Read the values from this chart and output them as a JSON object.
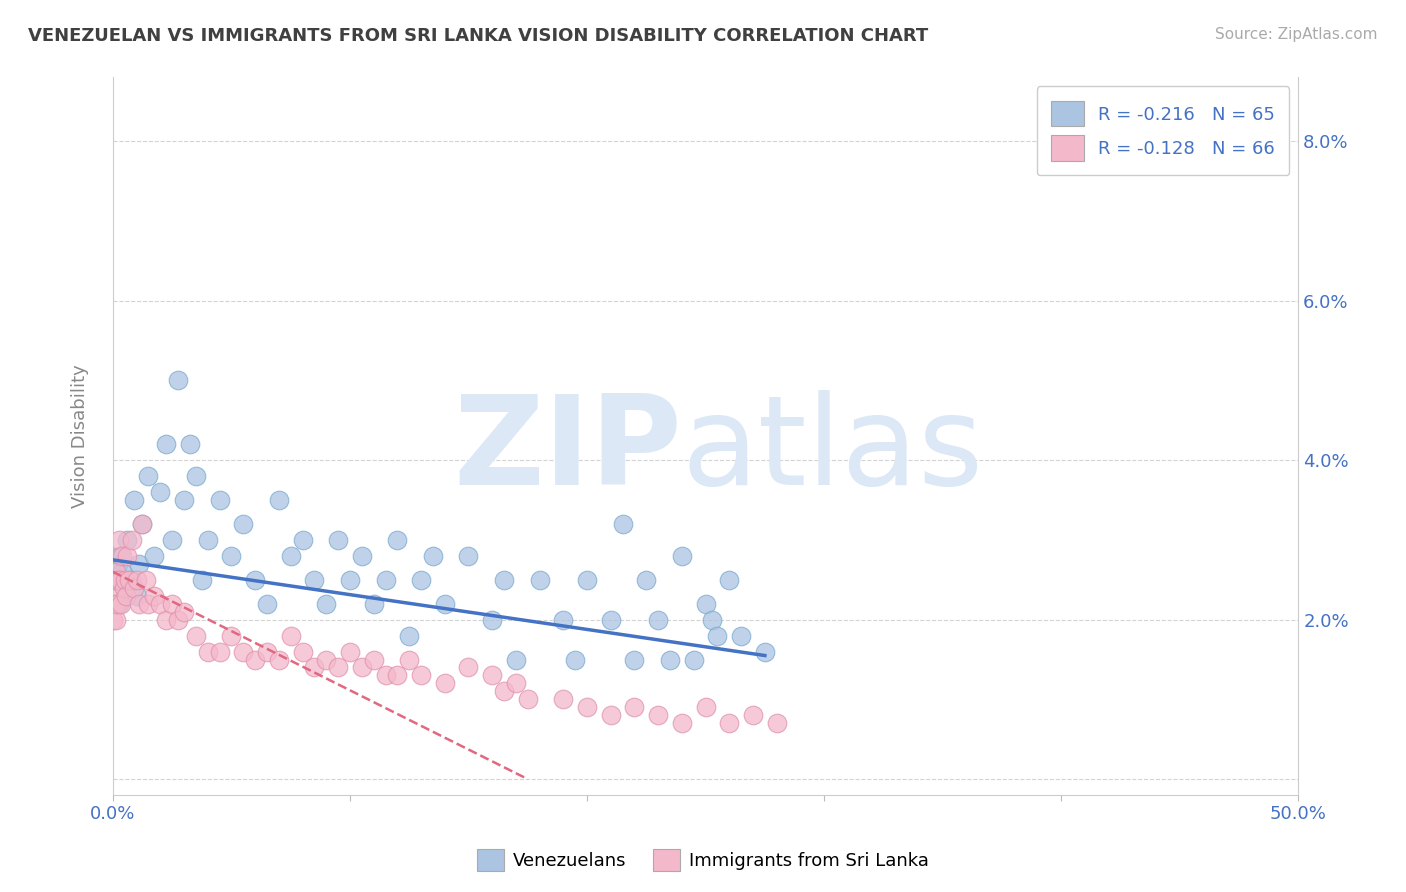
{
  "title": "VENEZUELAN VS IMMIGRANTS FROM SRI LANKA VISION DISABILITY CORRELATION CHART",
  "source": "Source: ZipAtlas.com",
  "ylabel": "Vision Disability",
  "legend_line1": "R = -0.216   N = 65",
  "legend_line2": "R = -0.128   N = 66",
  "watermark_zip": "ZIP",
  "watermark_atlas": "atlas",
  "blue_color": "#aac4e2",
  "blue_edge_color": "#7aaad0",
  "blue_line_color": "#4472c4",
  "pink_color": "#f4b8cb",
  "pink_edge_color": "#e090a8",
  "pink_line_color": "#e06880",
  "background_color": "#ffffff",
  "grid_color": "#c8c8c8",
  "title_color": "#404040",
  "axis_label_color": "#4472c4",
  "watermark_color": "#dce8f5",
  "blue_scatter_x": [
    0.2,
    0.4,
    0.5,
    0.6,
    0.8,
    1.0,
    1.2,
    1.5,
    1.8,
    2.0,
    2.2,
    2.5,
    3.0,
    3.5,
    4.0,
    4.5,
    5.0,
    5.5,
    6.0,
    6.5,
    7.0,
    7.5,
    8.0,
    9.0,
    10.0,
    11.0,
    12.0,
    13.0,
    14.0,
    15.0,
    16.0,
    17.0,
    18.0,
    19.0,
    20.0,
    21.0,
    22.0,
    23.0,
    24.0,
    25.0,
    26.0,
    27.0,
    28.0,
    30.0,
    32.0,
    33.0,
    34.0,
    36.0,
    38.0,
    39.0,
    40.0,
    42.0,
    43.0,
    44.0,
    45.0,
    46.0,
    47.0,
    48.0,
    49.0,
    50.0,
    50.5,
    51.0,
    52.0,
    53.0,
    55.0
  ],
  "blue_scatter_y": [
    0.025,
    0.027,
    0.022,
    0.028,
    0.026,
    0.024,
    0.03,
    0.025,
    0.035,
    0.023,
    0.027,
    0.032,
    0.038,
    0.028,
    0.036,
    0.042,
    0.03,
    0.05,
    0.035,
    0.042,
    0.038,
    0.025,
    0.03,
    0.035,
    0.028,
    0.032,
    0.025,
    0.022,
    0.035,
    0.028,
    0.03,
    0.025,
    0.022,
    0.03,
    0.025,
    0.028,
    0.022,
    0.025,
    0.03,
    0.018,
    0.025,
    0.028,
    0.022,
    0.028,
    0.02,
    0.025,
    0.015,
    0.025,
    0.02,
    0.015,
    0.025,
    0.02,
    0.032,
    0.015,
    0.025,
    0.02,
    0.015,
    0.028,
    0.015,
    0.022,
    0.02,
    0.018,
    0.025,
    0.018,
    0.016
  ],
  "pink_scatter_x": [
    0.05,
    0.1,
    0.15,
    0.2,
    0.25,
    0.3,
    0.35,
    0.4,
    0.5,
    0.6,
    0.7,
    0.8,
    0.9,
    1.0,
    1.1,
    1.2,
    1.4,
    1.6,
    1.8,
    2.0,
    2.2,
    2.5,
    2.8,
    3.0,
    3.5,
    4.0,
    4.5,
    5.0,
    5.5,
    6.0,
    7.0,
    8.0,
    9.0,
    10.0,
    11.0,
    12.0,
    13.0,
    14.0,
    15.0,
    16.0,
    17.0,
    18.0,
    19.0,
    20.0,
    21.0,
    22.0,
    23.0,
    24.0,
    25.0,
    26.0,
    28.0,
    30.0,
    32.0,
    33.0,
    34.0,
    35.0,
    38.0,
    40.0,
    42.0,
    44.0,
    46.0,
    48.0,
    50.0,
    52.0,
    54.0,
    56.0
  ],
  "pink_scatter_y": [
    0.02,
    0.023,
    0.022,
    0.025,
    0.02,
    0.026,
    0.022,
    0.025,
    0.03,
    0.025,
    0.022,
    0.028,
    0.024,
    0.025,
    0.023,
    0.028,
    0.025,
    0.03,
    0.024,
    0.025,
    0.022,
    0.032,
    0.025,
    0.022,
    0.023,
    0.022,
    0.02,
    0.022,
    0.02,
    0.021,
    0.018,
    0.016,
    0.016,
    0.018,
    0.016,
    0.015,
    0.016,
    0.015,
    0.018,
    0.016,
    0.014,
    0.015,
    0.014,
    0.016,
    0.014,
    0.015,
    0.013,
    0.013,
    0.015,
    0.013,
    0.012,
    0.014,
    0.013,
    0.011,
    0.012,
    0.01,
    0.01,
    0.009,
    0.008,
    0.009,
    0.008,
    0.007,
    0.009,
    0.007,
    0.008,
    0.007
  ],
  "blue_trend_x": [
    0,
    55
  ],
  "blue_trend_y_start": 0.0275,
  "blue_trend_y_end": 0.0155,
  "pink_trend_x": [
    0,
    35
  ],
  "pink_trend_y_start": 0.026,
  "pink_trend_y_end": 0.0,
  "xlim": [
    0,
    100
  ],
  "ylim": [
    -0.002,
    0.088
  ],
  "ytick_positions": [
    0.0,
    0.02,
    0.04,
    0.06,
    0.08
  ],
  "ytick_labels": [
    "",
    "2.0%",
    "4.0%",
    "6.0%",
    "8.0%"
  ],
  "xtick_positions": [
    0,
    20,
    40,
    60,
    80,
    100
  ],
  "xtick_labels": [
    "0.0%",
    "",
    "",
    "",
    "",
    "50.0%"
  ]
}
